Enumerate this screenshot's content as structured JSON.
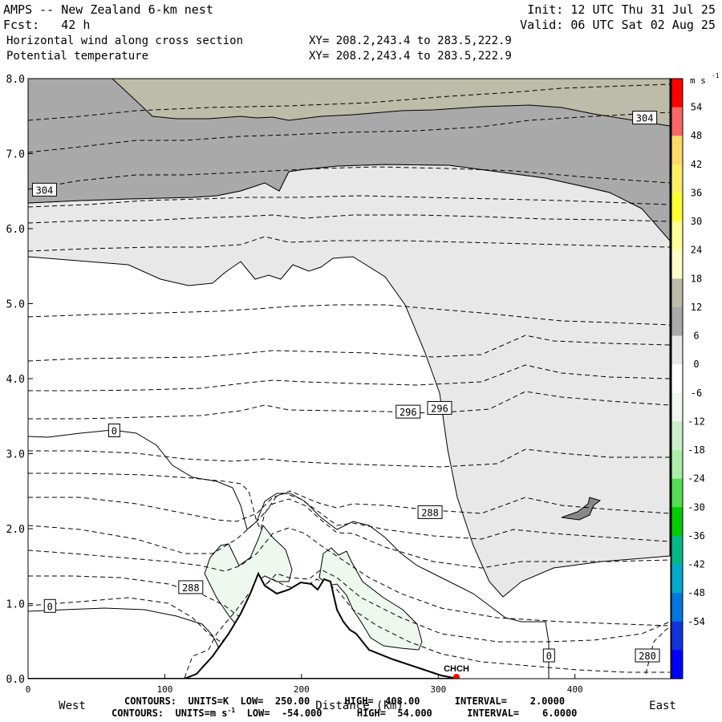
{
  "header": {
    "model_line": "AMPS -- New Zealand 6-km nest",
    "forecast_line": "Fcst:   42 h",
    "field1": "Horizontal wind along cross section",
    "field2": "Potential temperature",
    "init_line": "Init: 12 UTC Thu 31 Jul 25",
    "valid_line": "Valid: 06 UTC Sat 02 Aug 25",
    "xy1": "XY= 208.2,243.4 to 283.5,222.9",
    "xy2": "XY= 208.2,243.4 to 283.5,222.9"
  },
  "footer": {
    "contour1": "CONTOURS:  UNITS=K  LOW=  250.00      HIGH=  408.00      INTERVAL=    2.0000",
    "contour2_pre": "CONTOURS:  UNITS=m s",
    "contour2_post": "  LOW=  -54.000      HIGH=  54.000      INTERVAL=    6.0000",
    "contour2_sup": "-1"
  },
  "colors": {
    "wind_pos_6": "#e8e8e8",
    "wind_pos_12": "#a9a9a9",
    "wind_pos_18": "#bcbca8",
    "wind_neg_6": "#eef8ee",
    "ground": "#000000",
    "station_marker": "#ff0000"
  },
  "chart_data": {
    "type": "cross-section contour",
    "xlabel": "Distance (km)",
    "x_left_label": "West",
    "x_right_label": "East",
    "xlim": [
      0,
      470
    ],
    "ylim": [
      0,
      8
    ],
    "x_ticks": [
      "0",
      "100",
      "200",
      "300",
      "400"
    ],
    "x_tick_values": [
      0,
      100,
      200,
      300,
      400
    ],
    "y_ticks": [
      "0.0",
      "1.0",
      "2.0",
      "3.0",
      "4.0",
      "5.0",
      "6.0",
      "7.0",
      "8.0"
    ],
    "y_tick_values": [
      0,
      1,
      2,
      3,
      4,
      5,
      6,
      7,
      8
    ],
    "station_label": "CHCH",
    "station_x": 312,
    "colorbar": {
      "unit": "m s",
      "unit_sup": "-1",
      "levels": [
        "54",
        "48",
        "42",
        "36",
        "30",
        "24",
        "18",
        "12",
        "6",
        "0",
        "-6",
        "-12",
        "-18",
        "-24",
        "-30",
        "-36",
        "-42",
        "-48",
        "-54"
      ],
      "colors": [
        "#ff0000",
        "#ff6666",
        "#ffd966",
        "#ffee66",
        "#ffff33",
        "#ffff99",
        "#fffcc8",
        "#bcbca8",
        "#a9a9a9",
        "#e8e8e8",
        "#ffffff",
        "#eef8ee",
        "#ccf0cc",
        "#aaeeaa",
        "#55dd55",
        "#00cc00",
        "#00bb88",
        "#00aacc",
        "#0077dd",
        "#1133dd",
        "#0000ff"
      ]
    },
    "contour_labels": [
      {
        "text": "304",
        "x": 12,
        "y": 6.52
      },
      {
        "text": "304",
        "x": 451,
        "y": 7.48
      },
      {
        "text": "296",
        "x": 278,
        "y": 3.56
      },
      {
        "text": "296",
        "x": 301,
        "y": 3.61
      },
      {
        "text": "288",
        "x": 294,
        "y": 2.22
      },
      {
        "text": "288",
        "x": 119,
        "y": 1.22
      },
      {
        "text": "280",
        "x": 453,
        "y": 0.31
      },
      {
        "text": "0",
        "x": 63,
        "y": 3.31
      },
      {
        "text": "0",
        "x": 16,
        "y": 0.97
      },
      {
        "text": "0",
        "x": 381,
        "y": 0.31
      }
    ]
  }
}
